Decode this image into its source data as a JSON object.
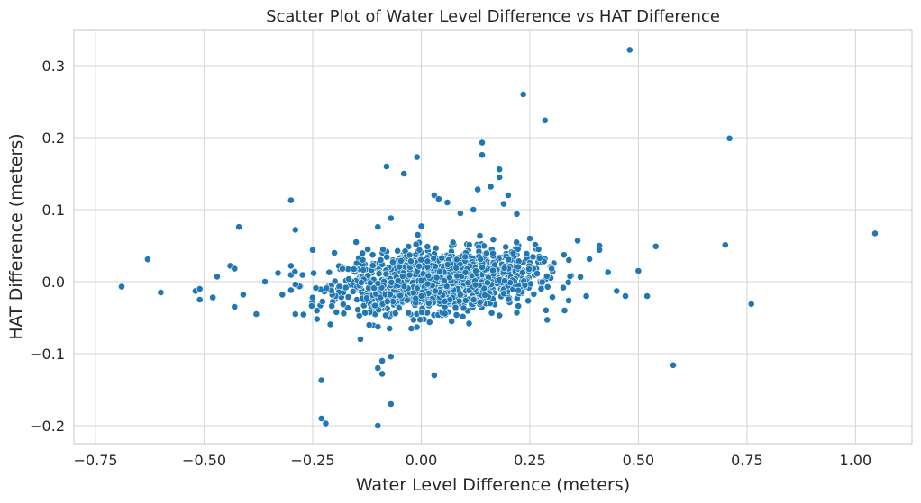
{
  "chart_data": {
    "type": "scatter",
    "title": "Scatter Plot of Water Level Difference vs HAT Difference",
    "xlabel": "Water Level Difference (meters)",
    "ylabel": "HAT Difference (meters)",
    "xlim": [
      -0.8,
      1.13
    ],
    "ylim": [
      -0.225,
      0.35
    ],
    "grid": true,
    "color": "#1f77b4",
    "xticks": [
      -0.75,
      -0.5,
      -0.25,
      0.0,
      0.25,
      0.5,
      0.75,
      1.0
    ],
    "xtick_labels": [
      "−0.75",
      "−0.50",
      "−0.25",
      "0.00",
      "0.25",
      "0.50",
      "0.75",
      "1.00"
    ],
    "yticks": [
      -0.2,
      -0.1,
      0.0,
      0.1,
      0.2,
      0.3
    ],
    "ytick_labels": [
      "−0.2",
      "−0.1",
      "0.0",
      "0.1",
      "0.2",
      "0.3"
    ],
    "points": [
      [
        0.48,
        0.322
      ],
      [
        0.235,
        0.26
      ],
      [
        0.285,
        0.224
      ],
      [
        0.71,
        0.199
      ],
      [
        -0.01,
        0.173
      ],
      [
        0.14,
        0.193
      ],
      [
        0.14,
        0.176
      ],
      [
        -0.08,
        0.16
      ],
      [
        -0.04,
        0.15
      ],
      [
        0.18,
        0.156
      ],
      [
        0.18,
        0.145
      ],
      [
        0.2,
        0.12
      ],
      [
        0.16,
        0.132
      ],
      [
        0.13,
        0.128
      ],
      [
        0.03,
        0.12
      ],
      [
        0.04,
        0.115
      ],
      [
        0.06,
        0.11
      ],
      [
        -0.3,
        0.113
      ],
      [
        -0.29,
        0.072
      ],
      [
        -0.42,
        0.076
      ],
      [
        -0.63,
        0.031
      ],
      [
        -0.69,
        -0.007
      ],
      [
        -0.6,
        -0.015
      ],
      [
        -0.52,
        -0.013
      ],
      [
        -0.51,
        -0.01
      ],
      [
        -0.51,
        -0.025
      ],
      [
        -0.48,
        -0.022
      ],
      [
        -0.47,
        0.007
      ],
      [
        -0.44,
        0.022
      ],
      [
        -0.43,
        0.018
      ],
      [
        -0.43,
        -0.035
      ],
      [
        -0.41,
        -0.018
      ],
      [
        -0.38,
        -0.045
      ],
      [
        -0.36,
        0.0
      ],
      [
        -0.33,
        0.012
      ],
      [
        -0.32,
        -0.018
      ],
      [
        -0.3,
        0.022
      ],
      [
        -0.29,
        -0.045
      ],
      [
        -0.24,
        -0.052
      ],
      [
        -0.23,
        -0.137
      ],
      [
        -0.23,
        -0.19
      ],
      [
        -0.22,
        -0.197
      ],
      [
        -0.1,
        -0.2
      ],
      [
        -0.14,
        -0.08
      ],
      [
        -0.1,
        -0.12
      ],
      [
        -0.09,
        -0.128
      ],
      [
        -0.09,
        -0.11
      ],
      [
        -0.07,
        -0.104
      ],
      [
        -0.07,
        -0.17
      ],
      [
        0.03,
        -0.13
      ],
      [
        1.045,
        0.067
      ],
      [
        0.7,
        0.051
      ],
      [
        0.76,
        -0.031
      ],
      [
        0.58,
        -0.116
      ],
      [
        0.54,
        0.049
      ],
      [
        0.52,
        -0.02
      ],
      [
        0.5,
        0.015
      ],
      [
        0.47,
        -0.02
      ],
      [
        0.43,
        0.013
      ],
      [
        0.41,
        0.05
      ],
      [
        0.41,
        0.044
      ],
      [
        0.36,
        0.057
      ],
      [
        0.29,
        -0.053
      ],
      [
        0.27,
        0.045
      ],
      [
        0.25,
        0.06
      ],
      [
        0.22,
        0.094
      ],
      [
        0.19,
        0.108
      ],
      [
        0.12,
        0.1
      ],
      [
        0.09,
        0.095
      ],
      [
        0.0,
        0.077
      ],
      [
        -0.1,
        0.076
      ],
      [
        -0.07,
        0.088
      ],
      [
        -0.2,
        0.04
      ],
      [
        -0.25,
        0.044
      ],
      [
        0.33,
        -0.04
      ],
      [
        0.22,
        -0.043
      ],
      [
        0.11,
        -0.058
      ],
      [
        0.07,
        -0.055
      ],
      [
        0.18,
        -0.047
      ],
      [
        0.45,
        -0.013
      ],
      [
        0.38,
        -0.02
      ],
      [
        0.34,
        0.03
      ],
      [
        0.3,
        0.018
      ],
      [
        -0.15,
        0.055
      ],
      [
        -0.12,
        -0.06
      ]
    ],
    "cluster": {
      "n": 1500,
      "x_range": [
        -0.3,
        0.45
      ],
      "y_range": [
        -0.065,
        0.065
      ]
    }
  }
}
